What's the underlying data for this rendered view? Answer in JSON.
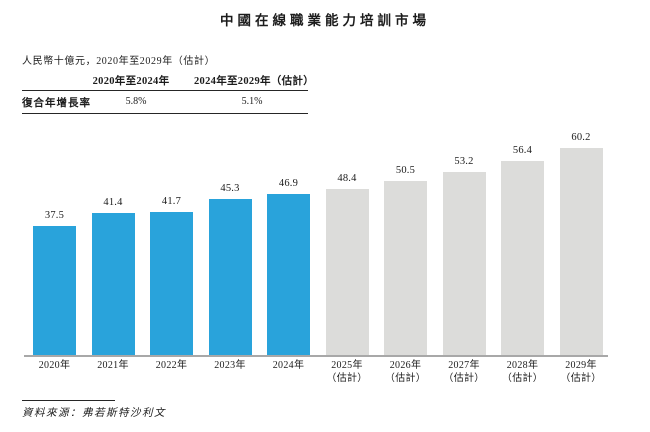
{
  "title": "中國在線職業能力培訓市場",
  "subtitle": "人民幣十億元，2020年至2029年（估計）",
  "cagr_table": {
    "row_label": "復合年增長率",
    "columns": [
      "2020年至2024年",
      "2024年至2029年（估計）"
    ],
    "values": [
      "5.8%",
      "5.1%"
    ]
  },
  "chart_data": {
    "type": "bar",
    "title": "中國在線職業能力培訓市場",
    "ylabel": "人民幣十億元",
    "categories": [
      "2020年",
      "2021年",
      "2022年",
      "2023年",
      "2024年",
      "2025年",
      "2026年",
      "2027年",
      "2028年",
      "2029年"
    ],
    "category_notes": [
      "",
      "",
      "",
      "",
      "",
      "（估計）",
      "（估計）",
      "（估計）",
      "（估計）",
      "（估計）"
    ],
    "values": [
      37.5,
      41.4,
      41.7,
      45.3,
      46.9,
      48.4,
      50.5,
      53.2,
      56.4,
      60.2
    ],
    "bar_styles": [
      "actual",
      "actual",
      "actual",
      "actual",
      "actual",
      "estimate",
      "estimate",
      "estimate",
      "estimate",
      "estimate"
    ],
    "colors": {
      "actual": "#29A3DB",
      "estimate": "#DCDCDA",
      "axis": "#A8A8A8"
    },
    "ylim": [
      0,
      62
    ],
    "grid": false,
    "legend": false,
    "value_labels": true
  },
  "source": "資料來源：弗若斯特沙利文"
}
